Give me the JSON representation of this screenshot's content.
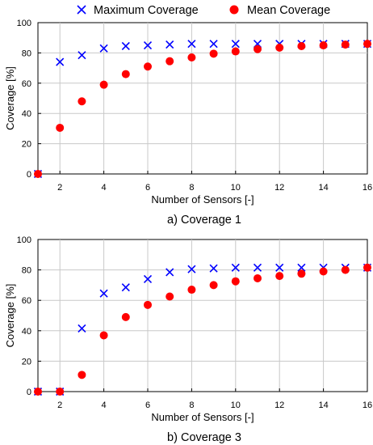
{
  "legend": {
    "max_label": "Maximum Coverage",
    "mean_label": "Mean Coverage",
    "max_color": "#0000ff",
    "mean_color": "#ff0000"
  },
  "chart_data": [
    {
      "type": "scatter",
      "caption": "a) Coverage 1",
      "xlabel": "Number of Sensors [-]",
      "ylabel": "Coverage [%]",
      "xlim": [
        1,
        16
      ],
      "ylim": [
        0,
        100
      ],
      "xticks": [
        2,
        4,
        6,
        8,
        10,
        12,
        14,
        16
      ],
      "yticks": [
        0,
        20,
        40,
        60,
        80,
        100
      ],
      "x": [
        1,
        2,
        3,
        4,
        5,
        6,
        7,
        8,
        9,
        10,
        11,
        12,
        13,
        14,
        15,
        16
      ],
      "series": [
        {
          "name": "Maximum Coverage",
          "marker": "x",
          "color": "#0000ff",
          "values": [
            0,
            74,
            78.5,
            83,
            84.5,
            85,
            85.5,
            86,
            86,
            86,
            86,
            86,
            86,
            86,
            86,
            86
          ]
        },
        {
          "name": "Mean Coverage",
          "marker": "circle",
          "color": "#ff0000",
          "values": [
            0,
            30.5,
            48,
            59,
            66,
            71,
            74.5,
            77,
            79.5,
            81,
            82.5,
            83.5,
            84.5,
            85,
            85.5,
            86
          ]
        }
      ]
    },
    {
      "type": "scatter",
      "caption": "b) Coverage 3",
      "xlabel": "Number of Sensors [-]",
      "ylabel": "Coverage [%]",
      "xlim": [
        1,
        16
      ],
      "ylim": [
        0,
        100
      ],
      "xticks": [
        2,
        4,
        6,
        8,
        10,
        12,
        14,
        16
      ],
      "yticks": [
        0,
        20,
        40,
        60,
        80,
        100
      ],
      "x": [
        1,
        2,
        3,
        4,
        5,
        6,
        7,
        8,
        9,
        10,
        11,
        12,
        13,
        14,
        15,
        16
      ],
      "series": [
        {
          "name": "Maximum Coverage",
          "marker": "x",
          "color": "#0000ff",
          "values": [
            0,
            0,
            41.5,
            64.5,
            68.5,
            74,
            78.5,
            80.5,
            81,
            81.5,
            81.5,
            81.5,
            81.5,
            81.5,
            81.5,
            81.5
          ]
        },
        {
          "name": "Mean Coverage",
          "marker": "circle",
          "color": "#ff0000",
          "values": [
            0,
            0,
            11,
            37,
            49,
            57,
            62.5,
            67,
            70,
            72.5,
            74.5,
            76,
            77.5,
            79,
            80,
            81.5
          ]
        }
      ]
    }
  ]
}
